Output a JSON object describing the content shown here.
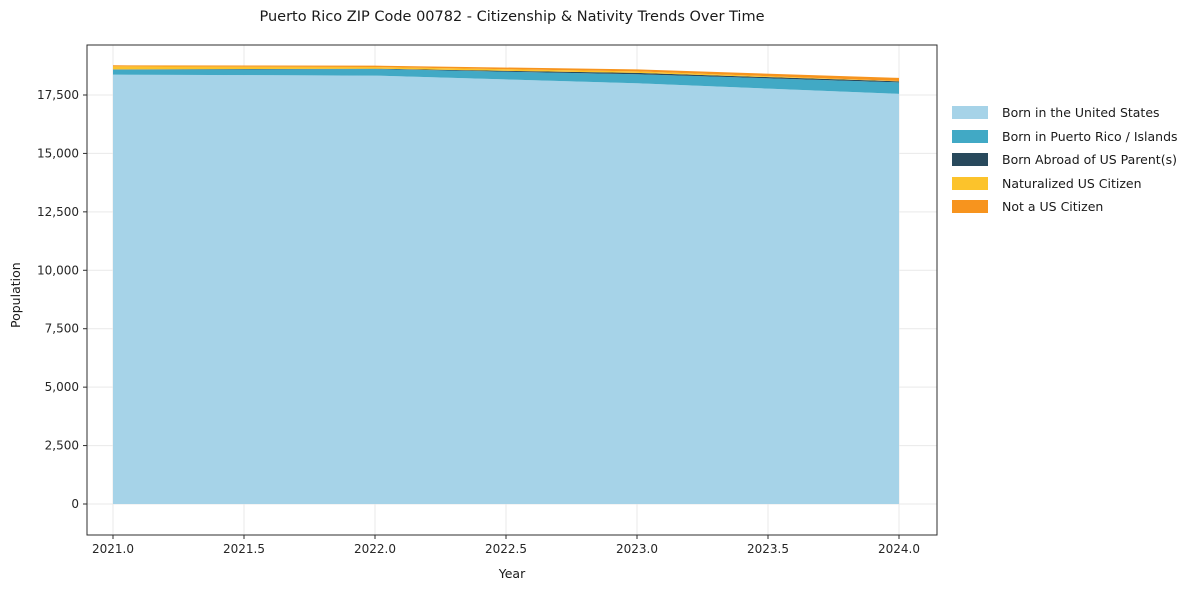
{
  "chart_data": {
    "type": "area",
    "stacked": true,
    "title": "Puerto Rico ZIP Code 00782 - Citizenship & Nativity Trends Over Time",
    "xlabel": "Year",
    "ylabel": "Population",
    "x": [
      2021,
      2022,
      2023,
      2024
    ],
    "series": [
      {
        "name": "Born in the United States",
        "color": "#A6D3E8",
        "values": [
          18370,
          18330,
          18000,
          17550
        ]
      },
      {
        "name": "Born in Puerto Rico / Islands",
        "color": "#41A9C5",
        "values": [
          215,
          280,
          385,
          490
        ]
      },
      {
        "name": "Born Abroad of US Parent(s)",
        "color": "#28495C",
        "values": [
          10,
          15,
          60,
          45
        ]
      },
      {
        "name": "Naturalized US Citizen",
        "color": "#FCC32B",
        "values": [
          130,
          70,
          65,
          15
        ]
      },
      {
        "name": "Not a US Citizen",
        "color": "#F7941E",
        "values": [
          45,
          60,
          85,
          130
        ]
      }
    ],
    "xticks": {
      "values": [
        2021.0,
        2021.5,
        2022.0,
        2022.5,
        2023.0,
        2023.5,
        2024.0
      ],
      "labels": [
        "2021.0",
        "2021.5",
        "2022.0",
        "2022.5",
        "2023.0",
        "2023.5",
        "2024.0"
      ]
    },
    "yticks": {
      "values": [
        0,
        2500,
        5000,
        7500,
        10000,
        12500,
        15000,
        17500
      ],
      "labels": [
        "0",
        "2,500",
        "5,000",
        "7,500",
        "10,000",
        "12,500",
        "15,000",
        "17,500"
      ]
    },
    "xlim": [
      2020.85,
      2024.15
    ],
    "ylim": [
      -1400,
      19600
    ],
    "grid": true,
    "legend_position": "right",
    "colors": {
      "background": "#ffffff",
      "grid": "#e9e9e9",
      "spine": "#2e2e2e",
      "tick_text": "#262626"
    }
  }
}
